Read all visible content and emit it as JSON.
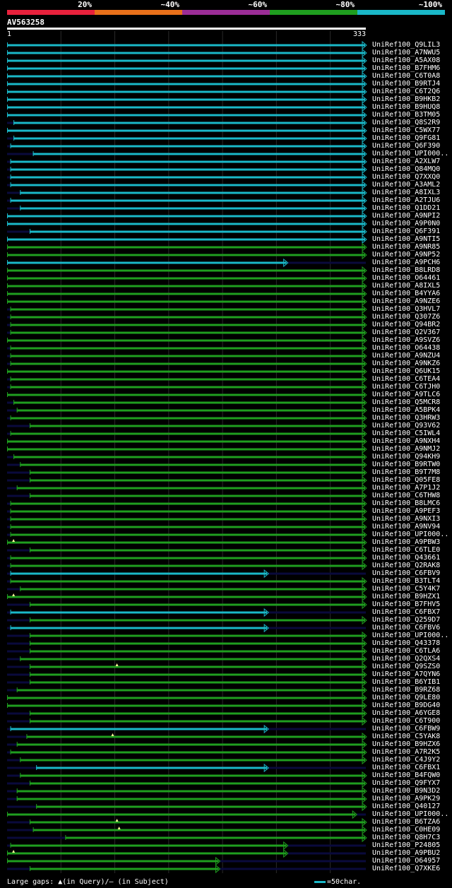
{
  "legend": [
    {
      "label": "20%",
      "color": "#e8213c"
    },
    {
      "label": "~40%",
      "color": "#e8701a"
    },
    {
      "label": "~60%",
      "color": "#9b2d96"
    },
    {
      "label": "~80%",
      "color": "#1f9e1f"
    },
    {
      "label": "~100%",
      "color": "#1ab8c8"
    }
  ],
  "query": {
    "name": "AV563258",
    "start": "1",
    "end": "333"
  },
  "hits": [
    {
      "id": "UniRef100_Q9LIL3",
      "c": "cyan",
      "s": 0,
      "e": 333
    },
    {
      "id": "UniRef100_A7NWU5",
      "c": "cyan",
      "s": 0,
      "e": 333
    },
    {
      "id": "UniRef100_A5AX08",
      "c": "cyan",
      "s": 0,
      "e": 333
    },
    {
      "id": "UniRef100_B7FHM6",
      "c": "cyan",
      "s": 0,
      "e": 333
    },
    {
      "id": "UniRef100_C6T0A8",
      "c": "cyan",
      "s": 0,
      "e": 333
    },
    {
      "id": "UniRef100_B9RTJ4",
      "c": "cyan",
      "s": 0,
      "e": 333
    },
    {
      "id": "UniRef100_C6T2Q6",
      "c": "cyan",
      "s": 0,
      "e": 333
    },
    {
      "id": "UniRef100_B9HKB2",
      "c": "cyan",
      "s": 0,
      "e": 333
    },
    {
      "id": "UniRef100_B9HUQ8",
      "c": "cyan",
      "s": 0,
      "e": 333
    },
    {
      "id": "UniRef100_B3TM05",
      "c": "cyan",
      "s": 0,
      "e": 333
    },
    {
      "id": "UniRef100_Q8S2R9",
      "c": "cyan",
      "s": 6,
      "e": 333
    },
    {
      "id": "UniRef100_C5WX77",
      "c": "cyan",
      "s": 0,
      "e": 333
    },
    {
      "id": "UniRef100_Q9FG81",
      "c": "cyan",
      "s": 6,
      "e": 333
    },
    {
      "id": "UniRef100_Q6F390",
      "c": "cyan",
      "s": 3,
      "e": 333
    },
    {
      "id": "UniRef100_UPI000..",
      "c": "cyan",
      "s": 24,
      "e": 333
    },
    {
      "id": "UniRef100_A2XLW7",
      "c": "cyan",
      "s": 3,
      "e": 333
    },
    {
      "id": "UniRef100_Q84MQ0",
      "c": "cyan",
      "s": 3,
      "e": 333
    },
    {
      "id": "UniRef100_Q7XXQ0",
      "c": "cyan",
      "s": 3,
      "e": 333
    },
    {
      "id": "UniRef100_A3AML2",
      "c": "cyan",
      "s": 3,
      "e": 333
    },
    {
      "id": "UniRef100_A8IXL3",
      "c": "cyan",
      "s": 12,
      "e": 333
    },
    {
      "id": "UniRef100_A2TJU6",
      "c": "cyan",
      "s": 3,
      "e": 333
    },
    {
      "id": "UniRef100_Q1DD21",
      "c": "cyan",
      "s": 12,
      "e": 333
    },
    {
      "id": "UniRef100_A9NPI2",
      "c": "cyan",
      "s": 0,
      "e": 333
    },
    {
      "id": "UniRef100_A9P0N0",
      "c": "cyan",
      "s": 0,
      "e": 333
    },
    {
      "id": "UniRef100_Q6F391",
      "c": "cyan",
      "s": 21,
      "e": 333
    },
    {
      "id": "UniRef100_A9NTI5",
      "c": "cyan",
      "s": 0,
      "e": 333
    },
    {
      "id": "UniRef100_A9NR85",
      "c": "green",
      "s": 0,
      "e": 333
    },
    {
      "id": "UniRef100_A9NP52",
      "c": "green",
      "s": 0,
      "e": 333
    },
    {
      "id": "UniRef100_A9PCH6",
      "c": "cyan",
      "s": 0,
      "e": 260
    },
    {
      "id": "UniRef100_B8LRD8",
      "c": "green",
      "s": 0,
      "e": 333
    },
    {
      "id": "UniRef100_O64461",
      "c": "green",
      "s": 0,
      "e": 333
    },
    {
      "id": "UniRef100_A8IXL5",
      "c": "green",
      "s": 0,
      "e": 333
    },
    {
      "id": "UniRef100_B4YYA6",
      "c": "green",
      "s": 0,
      "e": 333
    },
    {
      "id": "UniRef100_A9NZE6",
      "c": "green",
      "s": 0,
      "e": 333
    },
    {
      "id": "UniRef100_Q3HVL7",
      "c": "green",
      "s": 3,
      "e": 333
    },
    {
      "id": "UniRef100_Q307Z6",
      "c": "green",
      "s": 3,
      "e": 333
    },
    {
      "id": "UniRef100_Q94BR2",
      "c": "green",
      "s": 3,
      "e": 333
    },
    {
      "id": "UniRef100_Q2V367",
      "c": "green",
      "s": 3,
      "e": 333
    },
    {
      "id": "UniRef100_A9SVZ6",
      "c": "green",
      "s": 0,
      "e": 333
    },
    {
      "id": "UniRef100_O64438",
      "c": "green",
      "s": 3,
      "e": 333
    },
    {
      "id": "UniRef100_A9NZU4",
      "c": "green",
      "s": 3,
      "e": 333
    },
    {
      "id": "UniRef100_A9NKZ6",
      "c": "green",
      "s": 3,
      "e": 333
    },
    {
      "id": "UniRef100_Q6UK15",
      "c": "green",
      "s": 0,
      "e": 333
    },
    {
      "id": "UniRef100_C6TEA4",
      "c": "green",
      "s": 3,
      "e": 333
    },
    {
      "id": "UniRef100_C6TJH0",
      "c": "green",
      "s": 3,
      "e": 333
    },
    {
      "id": "UniRef100_A9TLC6",
      "c": "green",
      "s": 0,
      "e": 333
    },
    {
      "id": "UniRef100_Q5MCR8",
      "c": "green",
      "s": 6,
      "e": 333
    },
    {
      "id": "UniRef100_A5BPK4",
      "c": "green",
      "s": 9,
      "e": 333
    },
    {
      "id": "UniRef100_Q3HRW3",
      "c": "green",
      "s": 3,
      "e": 333
    },
    {
      "id": "UniRef100_Q93V62",
      "c": "green",
      "s": 21,
      "e": 333
    },
    {
      "id": "UniRef100_C5IWL4",
      "c": "green",
      "s": 3,
      "e": 333
    },
    {
      "id": "UniRef100_A9NXH4",
      "c": "green",
      "s": 0,
      "e": 333
    },
    {
      "id": "UniRef100_A9NMJ2",
      "c": "green",
      "s": 0,
      "e": 333
    },
    {
      "id": "UniRef100_Q94KH9",
      "c": "green",
      "s": 6,
      "e": 333
    },
    {
      "id": "UniRef100_B9RTW0",
      "c": "green",
      "s": 12,
      "e": 333
    },
    {
      "id": "UniRef100_B9T7M8",
      "c": "green",
      "s": 21,
      "e": 333
    },
    {
      "id": "UniRef100_Q05FE8",
      "c": "green",
      "s": 21,
      "e": 333
    },
    {
      "id": "UniRef100_A7P1J2",
      "c": "green",
      "s": 9,
      "e": 333
    },
    {
      "id": "UniRef100_C6THW8",
      "c": "green",
      "s": 21,
      "e": 333
    },
    {
      "id": "UniRef100_B8LMC6",
      "c": "green",
      "s": 3,
      "e": 333
    },
    {
      "id": "UniRef100_A9PEF3",
      "c": "green",
      "s": 3,
      "e": 333
    },
    {
      "id": "UniRef100_A9NXI3",
      "c": "green",
      "s": 3,
      "e": 333
    },
    {
      "id": "UniRef100_A9NV94",
      "c": "green",
      "s": 3,
      "e": 333
    },
    {
      "id": "UniRef100_UPI000..",
      "c": "green",
      "s": 3,
      "e": 333
    },
    {
      "id": "UniRef100_A9PBW3",
      "c": "green",
      "s": 0,
      "e": 333,
      "gap": 6
    },
    {
      "id": "UniRef100_C6TLE0",
      "c": "green",
      "s": 21,
      "e": 333
    },
    {
      "id": "UniRef100_Q43661",
      "c": "green",
      "s": 3,
      "e": 333
    },
    {
      "id": "UniRef100_Q2RAK8",
      "c": "green",
      "s": 3,
      "e": 333
    },
    {
      "id": "UniRef100_C6FBV9",
      "c": "cyan",
      "s": 3,
      "e": 242
    },
    {
      "id": "UniRef100_B3TLT4",
      "c": "green",
      "s": 3,
      "e": 333
    },
    {
      "id": "UniRef100_C5Y4K7",
      "c": "green",
      "s": 12,
      "e": 333
    },
    {
      "id": "UniRef100_B9HZX1",
      "c": "green",
      "s": 0,
      "e": 333,
      "gap": 6
    },
    {
      "id": "UniRef100_B7FHV5",
      "c": "green",
      "s": 21,
      "e": 333
    },
    {
      "id": "UniRef100_C6FBX7",
      "c": "cyan",
      "s": 3,
      "e": 242
    },
    {
      "id": "UniRef100_Q259D7",
      "c": "green",
      "s": 21,
      "e": 333
    },
    {
      "id": "UniRef100_C6FBV6",
      "c": "cyan",
      "s": 3,
      "e": 242
    },
    {
      "id": "UniRef100_UPI000..",
      "c": "green",
      "s": 21,
      "e": 333
    },
    {
      "id": "UniRef100_Q43378",
      "c": "green",
      "s": 21,
      "e": 333
    },
    {
      "id": "UniRef100_C6TLA6",
      "c": "green",
      "s": 21,
      "e": 333
    },
    {
      "id": "UniRef100_Q2QXS4",
      "c": "green",
      "s": 12,
      "e": 333
    },
    {
      "id": "UniRef100_Q9SZS0",
      "c": "green",
      "s": 21,
      "e": 333,
      "gap": 102
    },
    {
      "id": "UniRef100_A7QYN6",
      "c": "green",
      "s": 21,
      "e": 333
    },
    {
      "id": "UniRef100_B6YIB1",
      "c": "green",
      "s": 21,
      "e": 333
    },
    {
      "id": "UniRef100_B9RZ68",
      "c": "green",
      "s": 9,
      "e": 333
    },
    {
      "id": "UniRef100_Q9LE80",
      "c": "green",
      "s": 0,
      "e": 333
    },
    {
      "id": "UniRef100_B9DG40",
      "c": "green",
      "s": 0,
      "e": 333
    },
    {
      "id": "UniRef100_A6YGE8",
      "c": "green",
      "s": 21,
      "e": 333
    },
    {
      "id": "UniRef100_C6T900",
      "c": "green",
      "s": 21,
      "e": 333
    },
    {
      "id": "UniRef100_C6FBW9",
      "c": "cyan",
      "s": 3,
      "e": 242
    },
    {
      "id": "UniRef100_C5YAK8",
      "c": "green",
      "s": 18,
      "e": 333,
      "gap": 98
    },
    {
      "id": "UniRef100_B9HZX6",
      "c": "green",
      "s": 9,
      "e": 333
    },
    {
      "id": "UniRef100_A7R2K5",
      "c": "green",
      "s": 3,
      "e": 333
    },
    {
      "id": "UniRef100_C4J9Y2",
      "c": "green",
      "s": 12,
      "e": 333
    },
    {
      "id": "UniRef100_C6FBX1",
      "c": "cyan",
      "s": 27,
      "e": 242
    },
    {
      "id": "UniRef100_B4FQW0",
      "c": "green",
      "s": 12,
      "e": 333
    },
    {
      "id": "UniRef100_Q9FYX7",
      "c": "green",
      "s": 21,
      "e": 333
    },
    {
      "id": "UniRef100_B9N3D2",
      "c": "green",
      "s": 9,
      "e": 333
    },
    {
      "id": "UniRef100_A9PK29",
      "c": "green",
      "s": 9,
      "e": 333
    },
    {
      "id": "UniRef100_Q40127",
      "c": "green",
      "s": 27,
      "e": 333
    },
    {
      "id": "UniRef100_UPI000..",
      "c": "green",
      "s": 0,
      "e": 324
    },
    {
      "id": "UniRef100_B6TZA6",
      "c": "green",
      "s": 21,
      "e": 333,
      "gap": 102
    },
    {
      "id": "UniRef100_C0HE09",
      "c": "green",
      "s": 24,
      "e": 333,
      "gap": 104
    },
    {
      "id": "UniRef100_Q8H7C3",
      "c": "green",
      "s": 54,
      "e": 333
    },
    {
      "id": "UniRef100_P24805",
      "c": "green",
      "s": 3,
      "e": 260
    },
    {
      "id": "UniRef100_A9PBU2",
      "c": "green",
      "s": 0,
      "e": 260,
      "gap": 6
    },
    {
      "id": "UniRef100_O64957",
      "c": "green",
      "s": 0,
      "e": 197
    },
    {
      "id": "UniRef100_Q7XKE6",
      "c": "green",
      "s": 21,
      "e": 197
    }
  ],
  "footer": {
    "gap_text": "Large gaps: ▲(in Query)/– (in Subject)",
    "scale_text": "=50char.",
    "scale_color": "#1ab8c8"
  },
  "colors": {
    "cyan": "#1ab8c8",
    "green": "#1f9e1f",
    "gridline": "#2a2a2a",
    "unaligned": "#0a0a3c",
    "gap_marker": "#ffff99"
  }
}
